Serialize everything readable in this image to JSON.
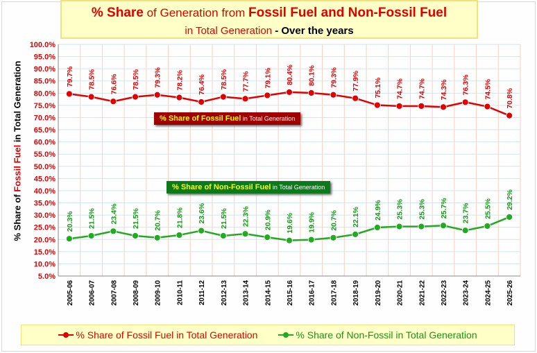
{
  "title": {
    "p1": "% Share",
    "p2": " of Generation from ",
    "p3": "Fossil Fuel and Non-Fossil Fuel",
    "p4": "in Total Generation",
    "p5": " - Over the years"
  },
  "colors": {
    "fossil": "#e00000",
    "nonfossil": "#22aa22"
  },
  "annotations": {
    "fossil_bold": "% Share of Fossil Fuel",
    "fossil_rest": " in Total Generation",
    "nonfossil_bold": "% Share of Non-Fossil Fuel",
    "nonfossil_rest": " in Total Generation"
  },
  "chart_data": {
    "type": "line",
    "ylabel_pre": "% Share of ",
    "ylabel_red": "Fossil Fuel",
    "ylabel_post": " in Total Generation",
    "ylim": [
      5,
      100
    ],
    "yticks": [
      "5.0%",
      "10.0%",
      "15.0%",
      "20.0%",
      "25.0%",
      "30.0%",
      "35.0%",
      "40.0%",
      "45.0%",
      "50.0%",
      "55.0%",
      "60.0%",
      "65.0%",
      "70.0%",
      "75.0%",
      "80.0%",
      "85.0%",
      "90.0%",
      "95.0%",
      "100.0%"
    ],
    "categories": [
      "2005-06",
      "2006-07",
      "2007-08",
      "2008-09",
      "2009-10",
      "2010-11",
      "2011-12",
      "2012-13",
      "2013-14",
      "2014-15",
      "2015-16",
      "2016-17",
      "2017-18",
      "2018-19",
      "2019-20",
      "2020-21",
      "2021-22",
      "2022-23",
      "2023-24",
      "2024-25",
      "2025-26"
    ],
    "series": [
      {
        "name": "% Share of Fossil Fuel in Total Generation",
        "values": [
          79.7,
          78.5,
          76.6,
          78.5,
          79.3,
          78.2,
          76.4,
          78.5,
          77.7,
          79.1,
          80.4,
          80.1,
          79.3,
          77.9,
          75.1,
          74.7,
          74.7,
          74.3,
          76.3,
          74.5,
          70.8
        ]
      },
      {
        "name": "% Share of Non-Fossil in Total Generation",
        "values": [
          20.3,
          21.5,
          23.4,
          21.5,
          20.7,
          21.8,
          23.6,
          21.5,
          22.3,
          20.9,
          19.6,
          19.9,
          20.7,
          22.1,
          24.9,
          25.3,
          25.3,
          25.7,
          23.7,
          25.5,
          29.2
        ]
      }
    ],
    "legend": "bottom",
    "grid": true
  }
}
